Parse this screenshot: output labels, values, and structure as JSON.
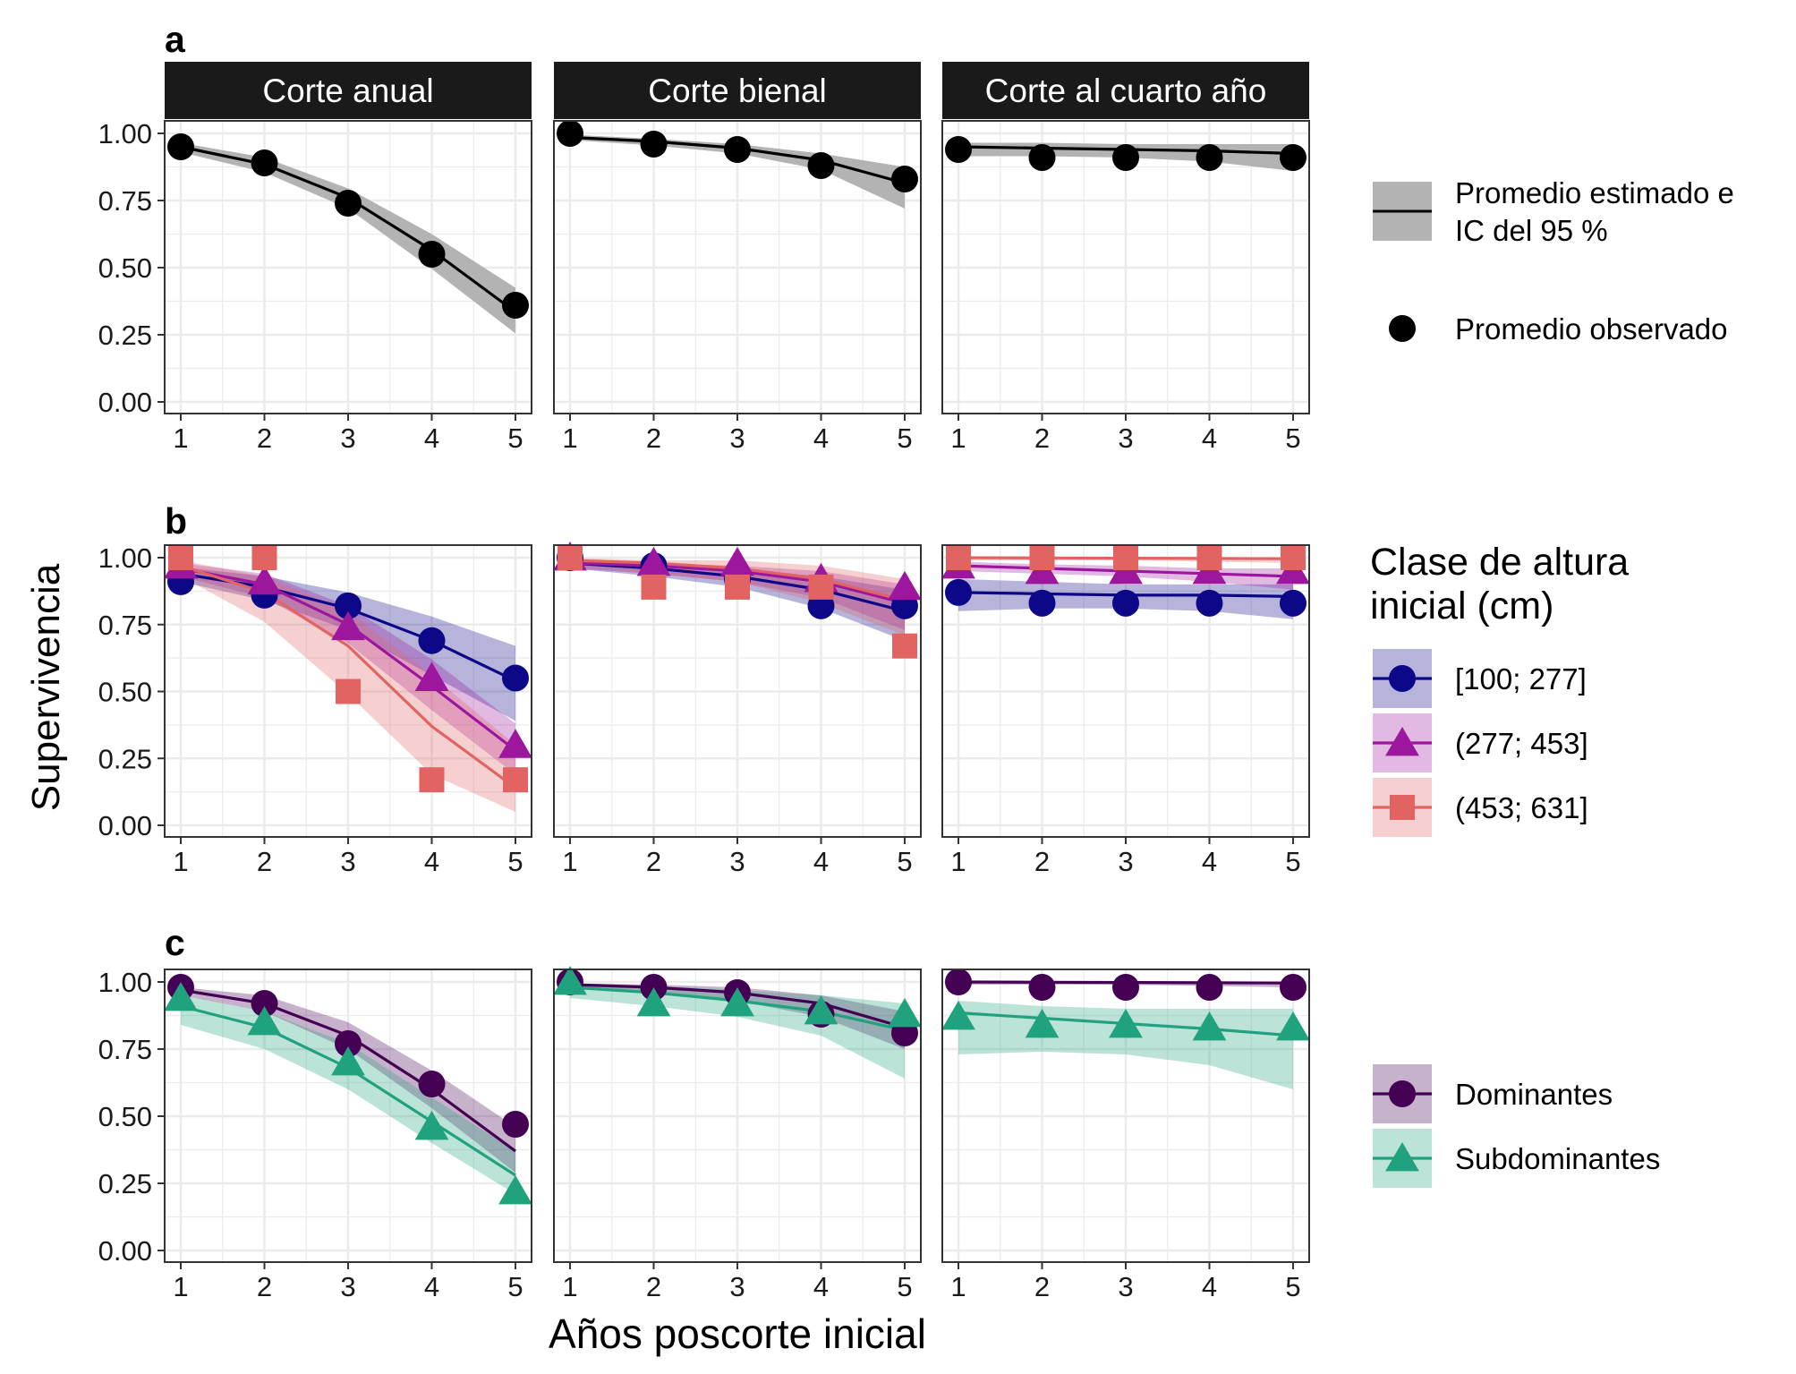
{
  "figure": {
    "ylabel": "Supervivencia",
    "xlabel": "Años poscorte inicial",
    "facets": [
      "Corte anual",
      "Corte bienal",
      "Corte al cuarto año"
    ],
    "row_labels": [
      "a",
      "b",
      "c"
    ]
  },
  "legends": {
    "a": {
      "ribbon_label": "Promedio estimado e\nIC del 95 %",
      "point_label": "Promedio observado"
    },
    "b": {
      "title": "Clase de altura\ninicial (cm)",
      "items": [
        "[100; 277]",
        "(277; 453]",
        "(453; 631]"
      ]
    },
    "c": {
      "items": [
        "Dominantes",
        "Subdominantes"
      ]
    }
  },
  "colors": {
    "black": "#000000",
    "ribbon_black": "#b3b3b3",
    "blue": "#0d0887",
    "purple": "#9c179e",
    "coral": "#e16462",
    "dark_purple": "#440154",
    "teal": "#21a27e",
    "strip": "#1a1a1a",
    "grid": "#ebebeb"
  },
  "chart_data": [
    {
      "type": "line",
      "panel": "a",
      "x": [
        1,
        2,
        3,
        4,
        5
      ],
      "xlim": [
        1,
        5
      ],
      "ylim": [
        0,
        1
      ],
      "yticks": [
        "0.00",
        "0.25",
        "0.50",
        "0.75",
        "1.00"
      ],
      "grid": true,
      "legend_position": "right",
      "facets": [
        {
          "facet": "Corte anual",
          "series": [
            {
              "color": "black",
              "shape": "circle",
              "observed": [
                0.95,
                0.89,
                0.74,
                0.55,
                0.36
              ],
              "fit": [
                0.95,
                0.885,
                0.76,
                0.565,
                0.335
              ],
              "lower": [
                0.93,
                0.855,
                0.72,
                0.495,
                0.255
              ],
              "upper": [
                0.965,
                0.91,
                0.795,
                0.625,
                0.425
              ]
            }
          ]
        },
        {
          "facet": "Corte bienal",
          "series": [
            {
              "color": "black",
              "shape": "circle",
              "observed": [
                1.0,
                0.96,
                0.94,
                0.88,
                0.83
              ],
              "fit": [
                0.985,
                0.97,
                0.945,
                0.9,
                0.815
              ],
              "lower": [
                0.975,
                0.955,
                0.925,
                0.865,
                0.72
              ],
              "upper": [
                0.995,
                0.98,
                0.96,
                0.925,
                0.875
              ]
            }
          ]
        },
        {
          "facet": "Corte al cuarto año",
          "series": [
            {
              "color": "black",
              "shape": "circle",
              "observed": [
                0.94,
                0.91,
                0.91,
                0.91,
                0.91
              ],
              "fit": [
                0.95,
                0.945,
                0.94,
                0.935,
                0.925
              ],
              "lower": [
                0.915,
                0.915,
                0.91,
                0.895,
                0.86
              ],
              "upper": [
                0.965,
                0.965,
                0.96,
                0.96,
                0.96
              ]
            }
          ]
        }
      ]
    },
    {
      "type": "line",
      "panel": "b",
      "x": [
        1,
        2,
        3,
        4,
        5
      ],
      "xlim": [
        1,
        5
      ],
      "ylim": [
        0,
        1
      ],
      "yticks": [
        "0.00",
        "0.25",
        "0.50",
        "0.75",
        "1.00"
      ],
      "grid": true,
      "legend_position": "right",
      "facets": [
        {
          "facet": "Corte anual",
          "series": [
            {
              "name": "[100; 277]",
              "color": "blue",
              "shape": "circle",
              "observed": [
                0.91,
                0.86,
                0.82,
                0.69,
                0.55
              ],
              "fit": [
                0.94,
                0.89,
                0.81,
                0.69,
                0.54
              ],
              "lower": [
                0.91,
                0.84,
                0.73,
                0.56,
                0.39
              ],
              "upper": [
                0.965,
                0.93,
                0.87,
                0.78,
                0.67
              ]
            },
            {
              "name": "(277; 453]",
              "color": "purple",
              "shape": "triangle",
              "observed": [
                0.97,
                0.91,
                0.74,
                0.55,
                0.3
              ],
              "fit": [
                0.96,
                0.9,
                0.75,
                0.52,
                0.28
              ],
              "lower": [
                0.93,
                0.85,
                0.68,
                0.43,
                0.19
              ],
              "upper": [
                0.98,
                0.94,
                0.82,
                0.62,
                0.38
              ]
            },
            {
              "name": "(453; 631]",
              "color": "coral",
              "shape": "square",
              "observed": [
                1.0,
                1.0,
                0.5,
                0.17,
                0.17
              ],
              "fit": [
                0.97,
                0.87,
                0.67,
                0.37,
                0.14
              ],
              "lower": [
                0.93,
                0.76,
                0.49,
                0.19,
                0.05
              ],
              "upper": [
                0.99,
                0.93,
                0.8,
                0.56,
                0.3
              ]
            }
          ]
        },
        {
          "facet": "Corte bienal",
          "series": [
            {
              "name": "[100; 277]",
              "color": "blue",
              "shape": "circle",
              "observed": [
                1.0,
                0.97,
                0.92,
                0.82,
                0.82
              ],
              "fit": [
                0.98,
                0.96,
                0.93,
                0.88,
                0.8
              ],
              "lower": [
                0.96,
                0.93,
                0.89,
                0.81,
                0.69
              ],
              "upper": [
                0.99,
                0.98,
                0.96,
                0.93,
                0.88
              ]
            },
            {
              "name": "(277; 453]",
              "color": "purple",
              "shape": "triangle",
              "observed": [
                1.0,
                0.98,
                0.98,
                0.92,
                0.89
              ],
              "fit": [
                0.98,
                0.97,
                0.95,
                0.91,
                0.83
              ],
              "lower": [
                0.96,
                0.94,
                0.91,
                0.85,
                0.73
              ],
              "upper": [
                0.99,
                0.98,
                0.97,
                0.95,
                0.9
              ]
            },
            {
              "name": "(453; 631]",
              "color": "coral",
              "shape": "square",
              "observed": [
                1.0,
                0.89,
                0.89,
                0.89,
                0.67
              ],
              "fit": [
                0.99,
                0.98,
                0.96,
                0.92,
                0.84
              ],
              "lower": [
                0.97,
                0.94,
                0.91,
                0.83,
                0.71
              ],
              "upper": [
                1.0,
                0.99,
                0.99,
                0.97,
                0.92
              ]
            }
          ]
        },
        {
          "facet": "Corte al cuarto año",
          "series": [
            {
              "name": "[100; 277]",
              "color": "blue",
              "shape": "circle",
              "observed": [
                0.87,
                0.83,
                0.83,
                0.83,
                0.83
              ],
              "fit": [
                0.87,
                0.865,
                0.86,
                0.86,
                0.855
              ],
              "lower": [
                0.8,
                0.81,
                0.81,
                0.8,
                0.77
              ],
              "upper": [
                0.92,
                0.91,
                0.9,
                0.9,
                0.9
              ]
            },
            {
              "name": "(277; 453]",
              "color": "purple",
              "shape": "triangle",
              "observed": [
                0.97,
                0.95,
                0.95,
                0.95,
                0.95
              ],
              "fit": [
                0.97,
                0.96,
                0.95,
                0.94,
                0.93
              ],
              "lower": [
                0.95,
                0.94,
                0.93,
                0.91,
                0.88
              ],
              "upper": [
                0.985,
                0.975,
                0.97,
                0.96,
                0.96
              ]
            },
            {
              "name": "(453; 631]",
              "color": "coral",
              "shape": "square",
              "observed": [
                1.0,
                1.0,
                1.0,
                1.0,
                1.0
              ],
              "fit": [
                1.0,
                0.999,
                0.998,
                0.997,
                0.996
              ],
              "lower": [
                0.99,
                0.99,
                0.99,
                0.985,
                0.98
              ],
              "upper": [
                1.0,
                1.0,
                1.0,
                1.0,
                1.0
              ]
            }
          ]
        }
      ]
    },
    {
      "type": "line",
      "panel": "c",
      "x": [
        1,
        2,
        3,
        4,
        5
      ],
      "xlim": [
        1,
        5
      ],
      "ylim": [
        0,
        1
      ],
      "yticks": [
        "0.00",
        "0.25",
        "0.50",
        "0.75",
        "1.00"
      ],
      "grid": true,
      "legend_position": "right",
      "facets": [
        {
          "facet": "Corte anual",
          "series": [
            {
              "name": "Dominantes",
              "color": "dark_purple",
              "shape": "circle",
              "observed": [
                0.98,
                0.92,
                0.77,
                0.62,
                0.47
              ],
              "fit": [
                0.97,
                0.92,
                0.8,
                0.6,
                0.37
              ],
              "lower": [
                0.95,
                0.89,
                0.75,
                0.53,
                0.29
              ],
              "upper": [
                0.98,
                0.95,
                0.85,
                0.67,
                0.46
              ]
            },
            {
              "name": "Subdominantes",
              "color": "teal",
              "shape": "triangle",
              "observed": [
                0.94,
                0.85,
                0.7,
                0.46,
                0.22
              ],
              "fit": [
                0.91,
                0.83,
                0.68,
                0.48,
                0.28
              ],
              "lower": [
                0.84,
                0.75,
                0.6,
                0.4,
                0.21
              ],
              "upper": [
                0.95,
                0.89,
                0.77,
                0.57,
                0.37
              ]
            }
          ]
        },
        {
          "facet": "Corte bienal",
          "series": [
            {
              "name": "Dominantes",
              "color": "dark_purple",
              "shape": "circle",
              "observed": [
                1.0,
                0.98,
                0.96,
                0.88,
                0.81
              ],
              "fit": [
                0.99,
                0.98,
                0.96,
                0.92,
                0.83
              ],
              "lower": [
                0.98,
                0.96,
                0.93,
                0.87,
                0.75
              ],
              "upper": [
                0.995,
                0.99,
                0.98,
                0.95,
                0.89
              ]
            },
            {
              "name": "Subdominantes",
              "color": "teal",
              "shape": "triangle",
              "observed": [
                1.0,
                0.92,
                0.92,
                0.89,
                0.88
              ],
              "fit": [
                0.98,
                0.96,
                0.93,
                0.89,
                0.82
              ],
              "lower": [
                0.94,
                0.91,
                0.87,
                0.8,
                0.64
              ],
              "upper": [
                0.995,
                0.985,
                0.97,
                0.95,
                0.92
              ]
            }
          ]
        },
        {
          "facet": "Corte al cuarto año",
          "series": [
            {
              "name": "Dominantes",
              "color": "dark_purple",
              "shape": "circle",
              "observed": [
                1.0,
                0.98,
                0.98,
                0.98,
                0.98
              ],
              "fit": [
                1.0,
                0.999,
                0.998,
                0.997,
                0.996
              ],
              "lower": [
                0.99,
                0.99,
                0.99,
                0.985,
                0.98
              ],
              "upper": [
                1.0,
                1.0,
                1.0,
                1.0,
                1.0
              ]
            },
            {
              "name": "Subdominantes",
              "color": "teal",
              "shape": "triangle",
              "observed": [
                0.87,
                0.84,
                0.84,
                0.83,
                0.83
              ],
              "fit": [
                0.885,
                0.865,
                0.845,
                0.825,
                0.8
              ],
              "lower": [
                0.73,
                0.74,
                0.73,
                0.69,
                0.6
              ],
              "upper": [
                0.93,
                0.91,
                0.9,
                0.9,
                0.9
              ]
            }
          ]
        }
      ]
    }
  ]
}
